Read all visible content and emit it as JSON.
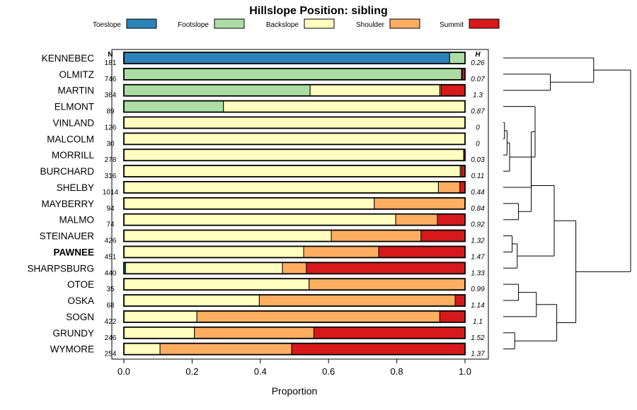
{
  "chart_data": {
    "type": "bar",
    "orientation": "horizontal-stacked",
    "title": "Hillslope Position: sibling",
    "xlabel": "Proportion",
    "xlim": [
      0,
      1
    ],
    "xticks": [
      "0.0",
      "0.2",
      "0.4",
      "0.6",
      "0.8",
      "1.0"
    ],
    "xtick_values": [
      0,
      0.2,
      0.4,
      0.6,
      0.8,
      1.0
    ],
    "n_header": "N",
    "h_header": "H",
    "legend": [
      {
        "name": "Toeslope",
        "color": "#2b83ba"
      },
      {
        "name": "Footslope",
        "color": "#abdda4"
      },
      {
        "name": "Backslope",
        "color": "#ffffbf"
      },
      {
        "name": "Shoulder",
        "color": "#fdae61"
      },
      {
        "name": "Summit",
        "color": "#d7191c"
      }
    ],
    "rows": [
      {
        "name": "KENNEBEC",
        "n": "181",
        "h": "0.26",
        "values": [
          0.955,
          0.045,
          0,
          0,
          0
        ]
      },
      {
        "name": "OLMITZ",
        "n": "746",
        "h": "0.07",
        "values": [
          0,
          0.99,
          0.002,
          0,
          0.008
        ]
      },
      {
        "name": "MARTIN",
        "n": "364",
        "h": "1.3",
        "values": [
          0,
          0.546,
          0.38,
          0.004,
          0.07
        ]
      },
      {
        "name": "ELMONT",
        "n": "89",
        "h": "0.87",
        "values": [
          0,
          0.292,
          0.708,
          0,
          0
        ]
      },
      {
        "name": "VINLAND",
        "n": "126",
        "h": "0",
        "values": [
          0,
          0,
          1,
          0,
          0
        ]
      },
      {
        "name": "MALCOLM",
        "n": "30",
        "h": "0",
        "values": [
          0,
          0,
          1,
          0,
          0
        ]
      },
      {
        "name": "MORRILL",
        "n": "278",
        "h": "0.03",
        "values": [
          0,
          0,
          0.996,
          0,
          0.004
        ]
      },
      {
        "name": "BURCHARD",
        "n": "316",
        "h": "0.11",
        "values": [
          0,
          0,
          0.986,
          0.004,
          0.01
        ]
      },
      {
        "name": "SHELBY",
        "n": "1014",
        "h": "0.44",
        "values": [
          0,
          0,
          0.922,
          0.063,
          0.015
        ]
      },
      {
        "name": "MAYBERRY",
        "n": "94",
        "h": "0.84",
        "values": [
          0,
          0,
          0.734,
          0.266,
          0
        ]
      },
      {
        "name": "MALMO",
        "n": "74",
        "h": "0.92",
        "values": [
          0,
          0,
          0.797,
          0.122,
          0.081
        ]
      },
      {
        "name": "STEINAUER",
        "n": "426",
        "h": "1.32",
        "values": [
          0,
          0,
          0.608,
          0.263,
          0.129
        ]
      },
      {
        "name": "PAWNEE",
        "n": "451",
        "h": "1.47",
        "values": [
          0,
          0,
          0.527,
          0.22,
          0.253
        ],
        "bold": true
      },
      {
        "name": "SHARPSBURG",
        "n": "440",
        "h": "1.33",
        "values": [
          0.005,
          0,
          0.46,
          0.07,
          0.465
        ]
      },
      {
        "name": "OTOE",
        "n": "35",
        "h": "0.99",
        "values": [
          0,
          0,
          0.543,
          0.457,
          0
        ]
      },
      {
        "name": "OSKA",
        "n": "68",
        "h": "1.14",
        "values": [
          0,
          0,
          0.397,
          0.574,
          0.029
        ]
      },
      {
        "name": "SOGN",
        "n": "422",
        "h": "1.1",
        "values": [
          0,
          0,
          0.214,
          0.712,
          0.074
        ]
      },
      {
        "name": "GRUNDY",
        "n": "246",
        "h": "1.52",
        "values": [
          0,
          0,
          0.207,
          0.35,
          0.443
        ]
      },
      {
        "name": "WYMORE",
        "n": "254",
        "h": "1.37",
        "values": [
          0,
          0,
          0.106,
          0.386,
          0.508
        ]
      }
    ],
    "dendrogram": {
      "tree": [
        [
          "KENNEBEC",
          [
            "OLMITZ",
            "MARTIN"
          ]
        ],
        [
          [
            [
              [
                "ELMONT",
                [
                  [
                    [
                      "VINLAND",
                      "MALCOLM"
                    ],
                    "MORRILL"
                  ],
                  "BURCHARD"
                ],
                "SHELBY"
              ],
              [
                "MAYBERRY",
                "MALMO"
              ]
            ],
            [
              [
                "STEINAUER",
                "PAWNEE"
              ],
              "SHARPSBURG"
            ]
          ],
          [
            [
              [
                "OTOE",
                "OSKA"
              ],
              "SOGN"
            ],
            [
              "GRUNDY",
              "WYMORE"
            ]
          ]
        ]
      ],
      "heights": {
        "root": 1.0,
        "KENNEBEC|OLMITZ": 0.71,
        "OLMITZ|MARTIN": 0.37,
        "big": 0.57,
        "left_group": 0.4,
        "ELMONT-SHELBY": 0.22,
        "ELMONT|BURCHARD": 0.25,
        "VM-MORRILL-BURCHARD": 0.05,
        "VM-MORRILL": 0.03,
        "VINLAND|MALCOLM": 0.01,
        "MAYBERRY|MALMO": 0.12,
        "STEINAUER-SHARPSBURG": 0.11,
        "STEINAUER|PAWNEE": 0.07,
        "right_group": 0.42,
        "OTOE-SOGN": 0.26,
        "OTOE|OSKA": 0.12,
        "GRUNDY|WYMORE": 0.09
      }
    }
  }
}
